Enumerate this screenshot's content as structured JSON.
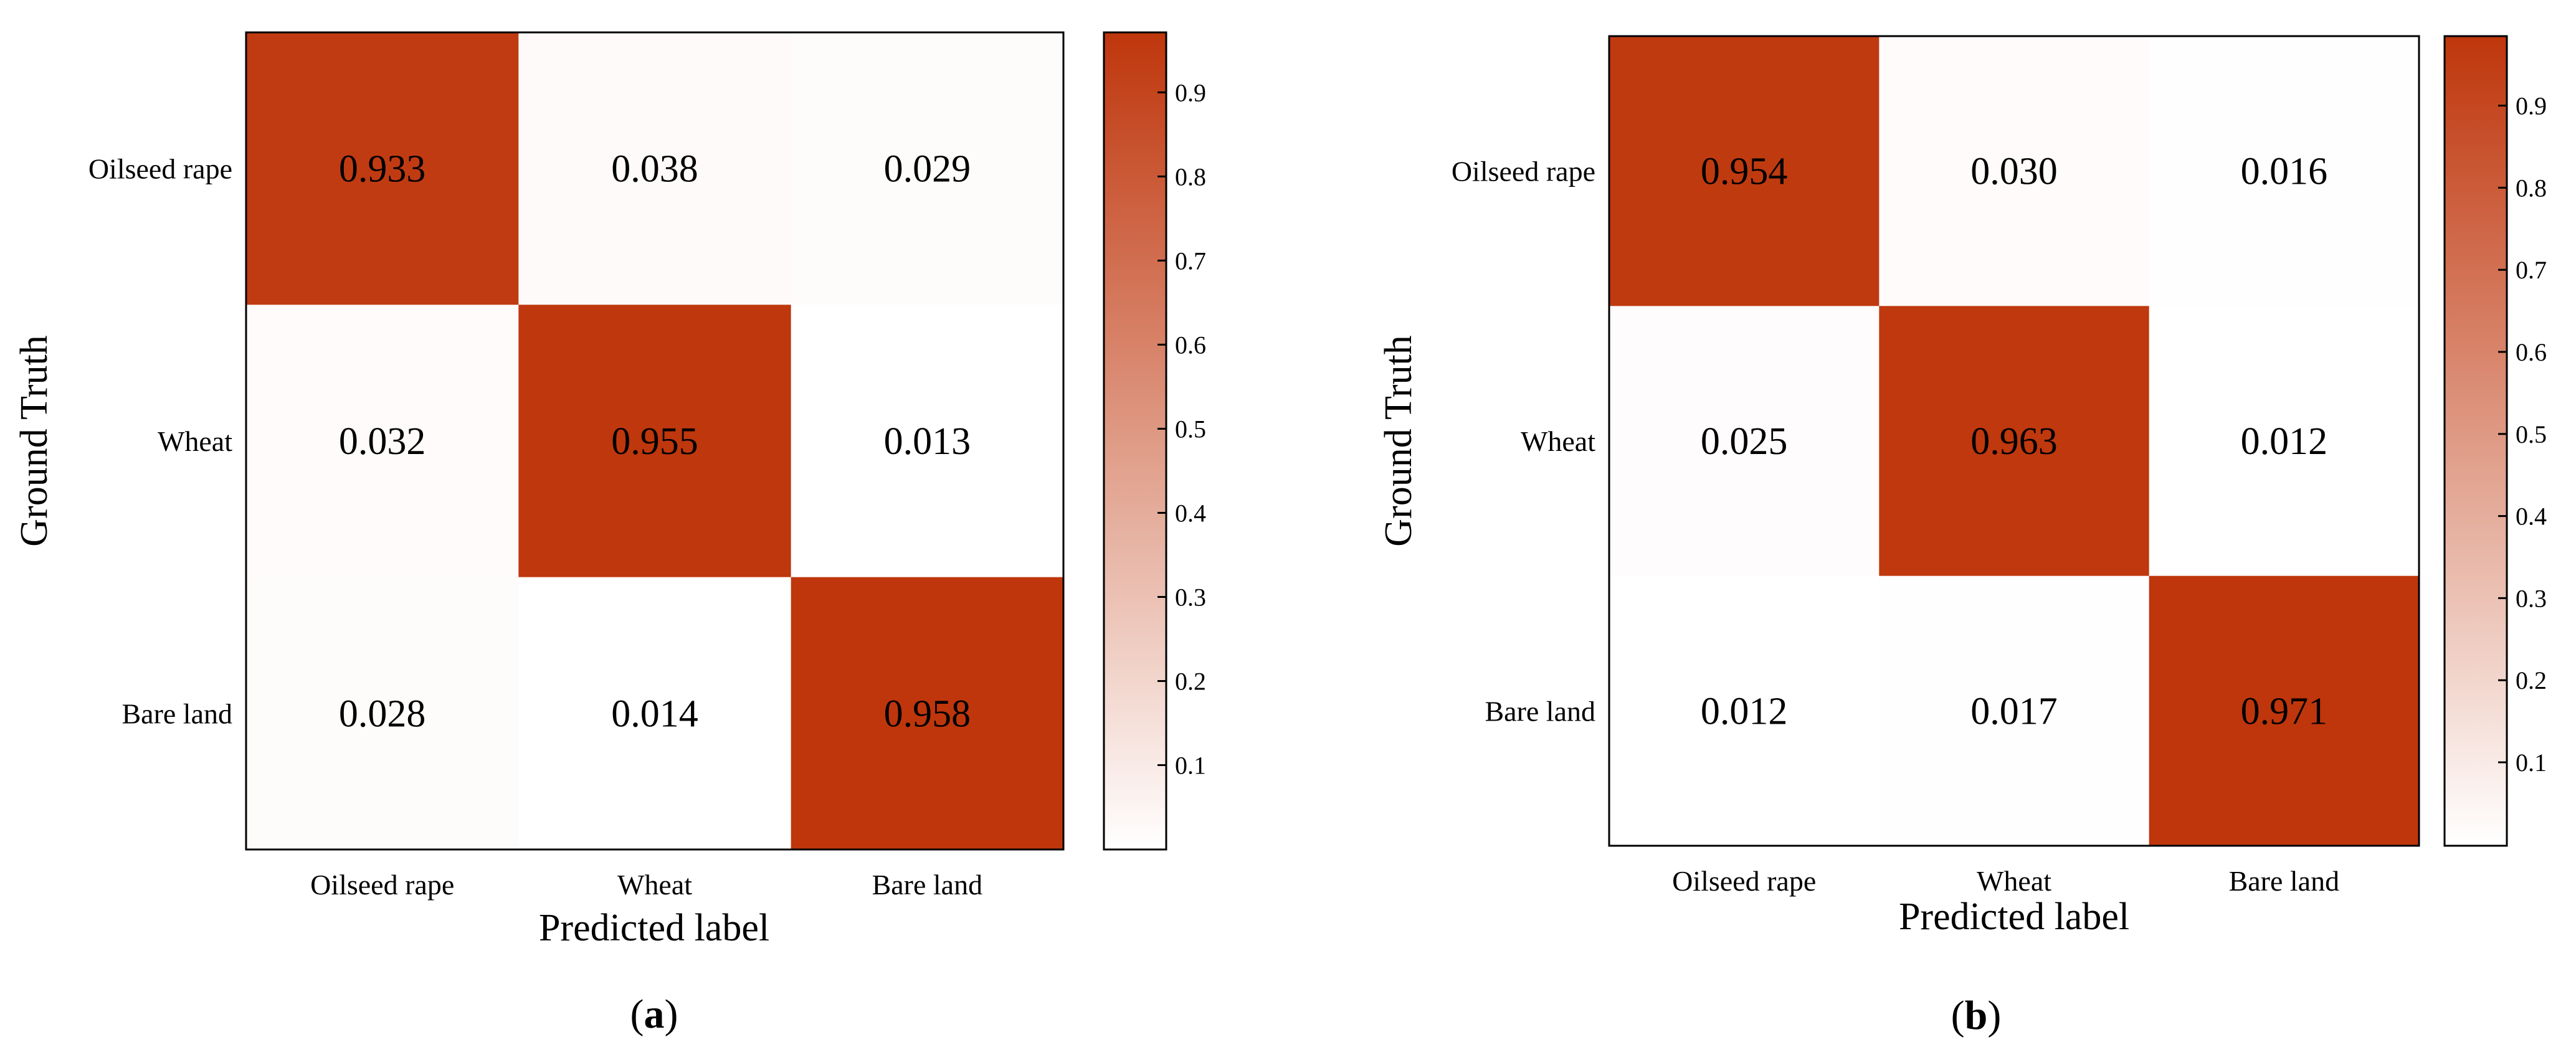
{
  "chart_data": [
    {
      "type": "heatmap",
      "panel_label": "(a)",
      "panel_letter": "a",
      "xlabel": "Predicted label",
      "ylabel": "Ground Truth",
      "x_categories": [
        "Oilseed rape",
        "Wheat",
        "Bare land"
      ],
      "y_categories": [
        "Oilseed rape",
        "Wheat",
        "Bare land"
      ],
      "values": [
        [
          0.933,
          0.038,
          0.029
        ],
        [
          0.032,
          0.955,
          0.013
        ],
        [
          0.028,
          0.014,
          0.958
        ]
      ],
      "value_labels": [
        [
          "0.933",
          "0.038",
          "0.029"
        ],
        [
          "0.032",
          "0.955",
          "0.013"
        ],
        [
          "0.028",
          "0.014",
          "0.958"
        ]
      ],
      "colorbar": {
        "range": [
          0.013,
          0.958
        ],
        "ticks": [
          0.1,
          0.2,
          0.3,
          0.4,
          0.5,
          0.6,
          0.7,
          0.8,
          0.9
        ],
        "tick_labels": [
          "0.1",
          "0.2",
          "0.3",
          "0.4",
          "0.5",
          "0.6",
          "0.7",
          "0.8",
          "0.9"
        ]
      }
    },
    {
      "type": "heatmap",
      "panel_label": "(b)",
      "panel_letter": "b",
      "xlabel": "Predicted label",
      "ylabel": "Ground Truth",
      "x_categories": [
        "Oilseed rape",
        "Wheat",
        "Bare land"
      ],
      "y_categories": [
        "Oilseed rape",
        "Wheat",
        "Bare land"
      ],
      "values": [
        [
          0.954,
          0.03,
          0.016
        ],
        [
          0.025,
          0.963,
          0.012
        ],
        [
          0.012,
          0.017,
          0.971
        ]
      ],
      "value_labels": [
        [
          "0.954",
          "0.030",
          "0.016"
        ],
        [
          "0.025",
          "0.963",
          "0.012"
        ],
        [
          "0.012",
          "0.017",
          "0.971"
        ]
      ],
      "colorbar": {
        "range": [
          0.012,
          0.971
        ],
        "ticks": [
          0.1,
          0.2,
          0.3,
          0.4,
          0.5,
          0.6,
          0.7,
          0.8,
          0.9
        ],
        "tick_labels": [
          "0.1",
          "0.2",
          "0.3",
          "0.4",
          "0.5",
          "0.6",
          "0.7",
          "0.8",
          "0.9"
        ]
      }
    }
  ],
  "colors": {
    "low": "#ffffff",
    "high": "#bf360c",
    "frame": "#000000"
  }
}
